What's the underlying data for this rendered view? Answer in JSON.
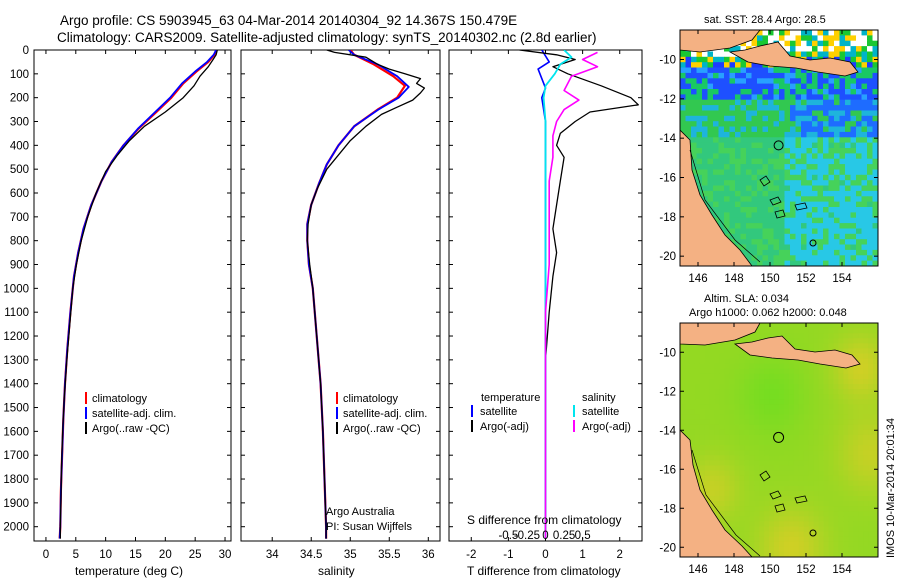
{
  "figure": {
    "title_line1": "Argo profile: CS 5903945_63 04-Mar-2014 20140304_92 14.367S 150.479E",
    "title_line2": "Climatology: CARS2009. Satellite-adjusted climatology: synTS_20140302.nc (2.8d earlier)",
    "footer": "IMOS 10-Mar-2014 20:01:34",
    "institution": "Argo Australia",
    "pi": "PI: Susan Wijffels"
  },
  "colors": {
    "climatology": "#ff0000",
    "satellite": "#0000ff",
    "argo": "#000000",
    "sal_satellite": "#00e5ee",
    "sal_argo": "#ff00ff",
    "land": "#f4b183"
  },
  "chart_data": [
    {
      "type": "line",
      "id": "temperature",
      "xlabel": "temperature (deg C)",
      "ylabel": "",
      "xlim": [
        -2,
        31
      ],
      "ylim": [
        2060,
        0
      ],
      "xticks": [
        "0",
        "5",
        "10",
        "15",
        "20",
        "25",
        "30"
      ],
      "yticks": [
        "0",
        "100",
        "200",
        "300",
        "400",
        "500",
        "600",
        "700",
        "800",
        "900",
        "1000",
        "1100",
        "1200",
        "1300",
        "1400",
        "1500",
        "1600",
        "1700",
        "1800",
        "1900",
        "2000"
      ],
      "legend": [
        "climatology",
        "satellite-adj. clim.",
        "Argo(..raw -QC)"
      ],
      "series": [
        {
          "name": "climatology",
          "points": [
            [
              28.6,
              0
            ],
            [
              28.2,
              20
            ],
            [
              27.2,
              50
            ],
            [
              25.2,
              90
            ],
            [
              23.0,
              140
            ],
            [
              21.0,
              200
            ],
            [
              18.5,
              260
            ],
            [
              15.5,
              330
            ],
            [
              13.0,
              400
            ],
            [
              11.0,
              470
            ],
            [
              9.3,
              550
            ],
            [
              7.6,
              650
            ],
            [
              6.3,
              750
            ],
            [
              5.4,
              850
            ],
            [
              4.7,
              950
            ],
            [
              4.1,
              1100
            ],
            [
              3.6,
              1250
            ],
            [
              3.2,
              1400
            ],
            [
              2.9,
              1550
            ],
            [
              2.7,
              1700
            ],
            [
              2.5,
              1850
            ],
            [
              2.4,
              2000
            ],
            [
              2.3,
              2050
            ]
          ]
        },
        {
          "name": "satellite-adj. clim.",
          "points": [
            [
              28.5,
              0
            ],
            [
              28.1,
              20
            ],
            [
              27.0,
              50
            ],
            [
              25.0,
              90
            ],
            [
              22.8,
              140
            ],
            [
              20.8,
              200
            ],
            [
              18.3,
              260
            ],
            [
              15.4,
              330
            ],
            [
              13.0,
              400
            ],
            [
              11.0,
              470
            ],
            [
              9.3,
              550
            ],
            [
              7.6,
              650
            ],
            [
              6.3,
              750
            ],
            [
              5.4,
              850
            ],
            [
              4.7,
              950
            ],
            [
              4.1,
              1100
            ],
            [
              3.6,
              1250
            ],
            [
              3.2,
              1400
            ],
            [
              2.9,
              1550
            ],
            [
              2.7,
              1700
            ],
            [
              2.5,
              1850
            ],
            [
              2.4,
              2000
            ],
            [
              2.3,
              2050
            ]
          ]
        },
        {
          "name": "Argo(..raw -QC)",
          "points": [
            [
              28.7,
              0
            ],
            [
              28.5,
              20
            ],
            [
              28.0,
              40
            ],
            [
              27.2,
              70
            ],
            [
              25.8,
              110
            ],
            [
              24.8,
              150
            ],
            [
              23.0,
              200
            ],
            [
              20.0,
              260
            ],
            [
              16.5,
              320
            ],
            [
              14.0,
              380
            ],
            [
              12.0,
              440
            ],
            [
              10.0,
              510
            ],
            [
              8.4,
              600
            ],
            [
              7.0,
              700
            ],
            [
              5.9,
              800
            ],
            [
              5.1,
              900
            ],
            [
              4.5,
              1000
            ],
            [
              4.0,
              1150
            ],
            [
              3.5,
              1300
            ],
            [
              3.1,
              1450
            ],
            [
              2.8,
              1600
            ],
            [
              2.6,
              1750
            ],
            [
              2.5,
              1900
            ],
            [
              2.4,
              2000
            ],
            [
              2.4,
              2050
            ]
          ]
        }
      ]
    },
    {
      "type": "line",
      "id": "salinity",
      "xlabel": "salinity",
      "ylabel": "",
      "xlim": [
        33.6,
        36.15
      ],
      "ylim": [
        2060,
        0
      ],
      "xticks": [
        "34",
        "34.5",
        "35",
        "35.5",
        "36"
      ],
      "legend": [
        "climatology",
        "satellite-adj. clim.",
        "Argo(..raw -QC)"
      ],
      "series": [
        {
          "name": "climatology",
          "points": [
            [
              35.0,
              0
            ],
            [
              35.05,
              20
            ],
            [
              35.3,
              60
            ],
            [
              35.55,
              110
            ],
            [
              35.7,
              150
            ],
            [
              35.6,
              200
            ],
            [
              35.35,
              250
            ],
            [
              35.05,
              320
            ],
            [
              34.85,
              400
            ],
            [
              34.7,
              480
            ],
            [
              34.6,
              560
            ],
            [
              34.5,
              650
            ],
            [
              34.45,
              730
            ],
            [
              34.45,
              800
            ],
            [
              34.47,
              900
            ],
            [
              34.52,
              1000
            ],
            [
              34.57,
              1200
            ],
            [
              34.62,
              1400
            ],
            [
              34.65,
              1600
            ],
            [
              34.67,
              1800
            ],
            [
              34.69,
              2000
            ],
            [
              34.69,
              2050
            ]
          ]
        },
        {
          "name": "satellite-adj. clim.",
          "points": [
            [
              34.98,
              0
            ],
            [
              35.05,
              20
            ],
            [
              35.35,
              60
            ],
            [
              35.6,
              110
            ],
            [
              35.75,
              155
            ],
            [
              35.62,
              200
            ],
            [
              35.36,
              250
            ],
            [
              35.05,
              320
            ],
            [
              34.85,
              400
            ],
            [
              34.7,
              480
            ],
            [
              34.6,
              560
            ],
            [
              34.5,
              650
            ],
            [
              34.45,
              730
            ],
            [
              34.45,
              800
            ],
            [
              34.47,
              900
            ],
            [
              34.52,
              1000
            ],
            [
              34.57,
              1200
            ],
            [
              34.62,
              1400
            ],
            [
              34.65,
              1600
            ],
            [
              34.67,
              1800
            ],
            [
              34.69,
              2000
            ],
            [
              34.69,
              2050
            ]
          ]
        },
        {
          "name": "Argo(..raw -QC)",
          "points": [
            [
              34.7,
              0
            ],
            [
              34.8,
              10
            ],
            [
              35.2,
              30
            ],
            [
              35.35,
              60
            ],
            [
              35.5,
              80
            ],
            [
              35.7,
              100
            ],
            [
              35.9,
              120
            ],
            [
              35.85,
              140
            ],
            [
              35.95,
              160
            ],
            [
              35.9,
              180
            ],
            [
              35.8,
              210
            ],
            [
              35.6,
              240
            ],
            [
              35.4,
              270
            ],
            [
              35.2,
              320
            ],
            [
              35.0,
              380
            ],
            [
              34.85,
              440
            ],
            [
              34.7,
              500
            ],
            [
              34.58,
              580
            ],
            [
              34.5,
              650
            ],
            [
              34.46,
              730
            ],
            [
              34.45,
              800
            ],
            [
              34.48,
              900
            ],
            [
              34.52,
              1000
            ],
            [
              34.57,
              1200
            ],
            [
              34.62,
              1400
            ],
            [
              34.65,
              1600
            ],
            [
              34.67,
              1800
            ],
            [
              34.69,
              2000
            ],
            [
              34.69,
              2050
            ]
          ]
        }
      ]
    },
    {
      "type": "line",
      "id": "difference",
      "xlabel": "T difference from climatology",
      "xlabel_top": "S difference from climatology",
      "ylabel": "",
      "xlim": [
        -2.6,
        2.6
      ],
      "ylim": [
        2060,
        0
      ],
      "xticks": [
        "-2",
        "-1",
        "0",
        "1",
        "2"
      ],
      "xticks_top": [
        "-0.5",
        "-0.25",
        "0",
        "0.25",
        "0.5"
      ],
      "legend_temperature_title": "temperature",
      "legend_salinity_title": "salinity",
      "legend": [
        "satellite",
        "Argo(-adj)",
        "satellite",
        "Argo(-adj)"
      ],
      "series": [
        {
          "name": "temperature satellite",
          "points": [
            [
              -0.1,
              0
            ],
            [
              0.1,
              50
            ],
            [
              -0.2,
              80
            ],
            [
              -0.1,
              120
            ],
            [
              0.0,
              160
            ],
            [
              -0.1,
              200
            ],
            [
              0.0,
              300
            ],
            [
              0.0,
              500
            ],
            [
              0.0,
              800
            ],
            [
              0.0,
              1200
            ],
            [
              0.0,
              2050
            ]
          ]
        },
        {
          "name": "temperature Argo(-adj)",
          "points": [
            [
              -0.7,
              0
            ],
            [
              0.3,
              20
            ],
            [
              0.8,
              40
            ],
            [
              0.2,
              70
            ],
            [
              0.6,
              100
            ],
            [
              1.5,
              150
            ],
            [
              2.3,
              200
            ],
            [
              2.5,
              230
            ],
            [
              1.2,
              260
            ],
            [
              0.8,
              300
            ],
            [
              0.4,
              350
            ],
            [
              0.3,
              400
            ],
            [
              0.5,
              450
            ],
            [
              0.4,
              550
            ],
            [
              0.3,
              650
            ],
            [
              0.2,
              750
            ],
            [
              0.3,
              850
            ],
            [
              0.2,
              950
            ],
            [
              0.1,
              1100
            ],
            [
              0.0,
              1300
            ],
            [
              0.0,
              2050
            ]
          ]
        },
        {
          "name": "salinity satellite",
          "points": [
            [
              0.5,
              0
            ],
            [
              0.7,
              30
            ],
            [
              0.4,
              60
            ],
            [
              0.25,
              100
            ],
            [
              0.0,
              150
            ],
            [
              -0.05,
              200
            ],
            [
              0.0,
              300
            ],
            [
              0.0,
              500
            ],
            [
              0.0,
              800
            ],
            [
              0.0,
              1200
            ],
            [
              0.0,
              2050
            ]
          ]
        },
        {
          "name": "salinity Argo(-adj)",
          "points": [
            [
              1.4,
              10
            ],
            [
              1.0,
              40
            ],
            [
              1.4,
              70
            ],
            [
              0.7,
              110
            ],
            [
              0.5,
              170
            ],
            [
              0.9,
              210
            ],
            [
              0.5,
              250
            ],
            [
              0.3,
              300
            ],
            [
              0.2,
              360
            ],
            [
              0.2,
              450
            ],
            [
              0.1,
              550
            ],
            [
              0.1,
              700
            ],
            [
              0.1,
              900
            ],
            [
              0.0,
              1100
            ],
            [
              0.0,
              2050
            ]
          ]
        }
      ]
    },
    {
      "type": "heatmap",
      "id": "sst_map",
      "title": "sat. SST: 28.4 Argo: 28.5",
      "xticks": [
        "146",
        "148",
        "150",
        "152",
        "154"
      ],
      "yticks": [
        "-10",
        "-12",
        "-14",
        "-16",
        "-18",
        "-20"
      ],
      "xlim": [
        145,
        156
      ],
      "ylim": [
        -20.5,
        -8.5
      ],
      "profile_position": [
        150.479,
        -14.367
      ]
    },
    {
      "type": "heatmap",
      "id": "sla_map",
      "title_line1": "Altim. SLA: 0.034",
      "title_line2": "Argo h1000: 0.062 h2000: 0.048",
      "xticks": [
        "146",
        "148",
        "150",
        "152",
        "154"
      ],
      "yticks": [
        "-10",
        "-12",
        "-14",
        "-16",
        "-18",
        "-20"
      ],
      "xlim": [
        145,
        156
      ],
      "ylim": [
        -20.5,
        -8.5
      ],
      "profile_position": [
        150.479,
        -14.367
      ]
    }
  ]
}
